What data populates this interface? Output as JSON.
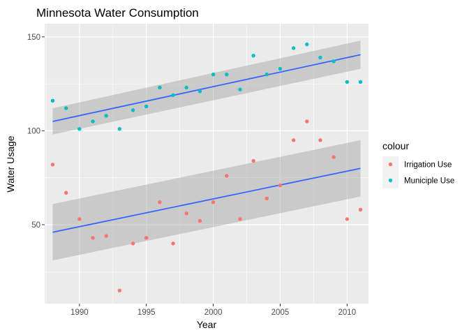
{
  "chart_data": {
    "type": "scatter",
    "title": "Minnesota Water Consumption",
    "xlabel": "Year",
    "ylabel": "Water Usage",
    "xlim": [
      1987.4,
      2011.6
    ],
    "ylim": [
      8,
      157
    ],
    "x_ticks": [
      1990,
      1995,
      2000,
      2005,
      2010
    ],
    "x_minor_ticks": [
      1987.5,
      1992.5,
      1997.5,
      2002.5,
      2007.5
    ],
    "y_ticks": [
      50,
      100,
      150
    ],
    "y_minor_ticks": [
      25,
      75,
      125
    ],
    "grid": true,
    "legend": {
      "title": "colour",
      "position": "right"
    },
    "series": [
      {
        "name": "Irrigation Use",
        "color": "#F8766D",
        "x": [
          1988,
          1989,
          1990,
          1991,
          1992,
          1993,
          1994,
          1995,
          1996,
          1997,
          1998,
          1999,
          2000,
          2001,
          2002,
          2003,
          2004,
          2005,
          2006,
          2007,
          2008,
          2009,
          2010,
          2011
        ],
        "y": [
          82,
          67,
          53,
          43,
          44,
          15,
          40,
          43,
          62,
          40,
          56,
          52,
          62,
          76,
          53,
          84,
          64,
          71,
          95,
          105,
          95,
          86,
          53,
          58
        ],
        "trend": {
          "x": [
            1988,
            2011
          ],
          "y": [
            46,
            80
          ],
          "band_lower": [
            31,
            65
          ],
          "band_upper": [
            61,
            95
          ]
        }
      },
      {
        "name": "Municiple Use",
        "color": "#00BFC4",
        "x": [
          1988,
          1989,
          1990,
          1991,
          1992,
          1993,
          1994,
          1995,
          1996,
          1997,
          1998,
          1999,
          2000,
          2001,
          2002,
          2003,
          2004,
          2005,
          2006,
          2007,
          2008,
          2009,
          2010,
          2011
        ],
        "y": [
          116,
          112,
          101,
          105,
          108,
          101,
          111,
          113,
          123,
          119,
          123,
          121,
          130,
          130,
          122,
          140,
          130,
          133,
          144,
          146,
          139,
          137,
          126,
          126
        ],
        "trend": {
          "x": [
            1988,
            2011
          ],
          "y": [
            105,
            140.5
          ],
          "band_lower": [
            98,
            133
          ],
          "band_upper": [
            112,
            148
          ]
        }
      }
    ],
    "trend_color": "#3366FF",
    "band_color": "#999999"
  }
}
